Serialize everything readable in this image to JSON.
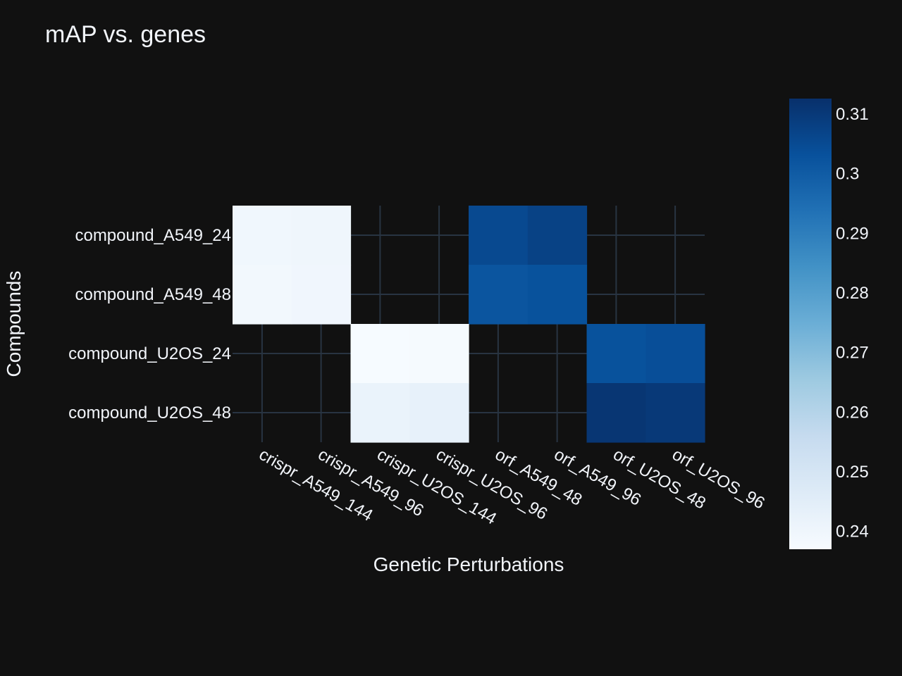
{
  "chart_data": {
    "type": "heatmap",
    "title": "mAP vs. genes",
    "xlabel": "Genetic Perturbations",
    "ylabel": "Compounds",
    "x_categories": [
      "crispr_A549_144",
      "crispr_A549_96",
      "crispr_U2OS_144",
      "crispr_U2OS_96",
      "orf_A549_48",
      "orf_A549_96",
      "orf_U2OS_48",
      "orf_U2OS_96"
    ],
    "y_categories": [
      "compound_A549_24",
      "compound_A549_48",
      "compound_U2OS_24",
      "compound_U2OS_48"
    ],
    "values": [
      [
        0.2395,
        0.24,
        null,
        null,
        0.3055,
        0.3075,
        null,
        null
      ],
      [
        0.2388,
        0.2398,
        null,
        null,
        0.302,
        0.303,
        null,
        null
      ],
      [
        null,
        null,
        0.2372,
        0.2378,
        null,
        null,
        0.303,
        0.304
      ],
      [
        null,
        null,
        0.242,
        0.243,
        null,
        null,
        0.311,
        0.31
      ]
    ],
    "colorscale": "Blues",
    "zmin": 0.237,
    "zmax": 0.3126,
    "colorbar_ticks": [
      0.24,
      0.25,
      0.26,
      0.27,
      0.28,
      0.29,
      0.3,
      0.31
    ],
    "colorbar_tick_labels": [
      "0.24",
      "0.25",
      "0.26",
      "0.27",
      "0.28",
      "0.29",
      "0.3",
      "0.31"
    ],
    "grid": true
  },
  "colors": {
    "background": "#111111",
    "grid": "#283442",
    "text": "#f2f5fa"
  }
}
